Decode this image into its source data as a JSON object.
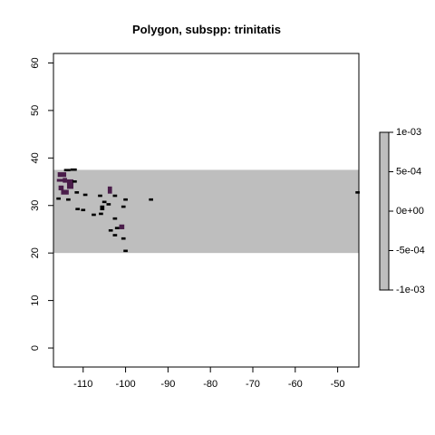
{
  "chart_data": {
    "type": "heatmap",
    "title": "Polygon, subspp: trinitatis",
    "xlabel": "",
    "ylabel": "",
    "xlim": [
      -117,
      -45
    ],
    "ylim": [
      -4,
      62
    ],
    "x_ticks": [
      -110,
      -100,
      -90,
      -80,
      -70,
      -60,
      -50
    ],
    "y_ticks": [
      0,
      10,
      20,
      30,
      40,
      50,
      60
    ],
    "extent_band": {
      "ymin": 20,
      "ymax": 37.5,
      "color": "#bebebe"
    },
    "colors": {
      "band": "#bebebe",
      "cell": "#000000",
      "dense_cell": "#4a1d4a"
    },
    "cells": [
      [
        -116.0,
        36.0,
        2.0,
        1.0,
        1
      ],
      [
        -114.5,
        37.2,
        1.5,
        0.5,
        0
      ],
      [
        -113.0,
        37.3,
        1.5,
        0.5,
        0
      ],
      [
        -116.2,
        35.0,
        1.5,
        0.6,
        1
      ],
      [
        -114.8,
        34.8,
        1.0,
        1.0,
        1
      ],
      [
        -113.8,
        33.5,
        1.5,
        2.0,
        1
      ],
      [
        -115.8,
        33.2,
        1.2,
        1.0,
        1
      ],
      [
        -115.2,
        32.3,
        1.8,
        1.0,
        1
      ],
      [
        -116.3,
        31.2,
        1.0,
        0.5,
        0
      ],
      [
        -114.0,
        31.0,
        1.0,
        0.5,
        0
      ],
      [
        -112.5,
        34.8,
        1.0,
        0.5,
        0
      ],
      [
        -112.0,
        32.5,
        1.0,
        0.5,
        0
      ],
      [
        -111.8,
        29.0,
        1.0,
        0.5,
        0
      ],
      [
        -110.5,
        28.8,
        1.0,
        0.5,
        0
      ],
      [
        -110.0,
        32.0,
        1.0,
        0.5,
        0
      ],
      [
        -108.0,
        27.8,
        1.0,
        0.5,
        0
      ],
      [
        -106.5,
        31.8,
        1.0,
        0.5,
        0
      ],
      [
        -104.2,
        32.5,
        1.0,
        1.5,
        1
      ],
      [
        -103.0,
        31.8,
        1.0,
        0.5,
        0
      ],
      [
        -105.5,
        30.5,
        1.0,
        0.5,
        0
      ],
      [
        -104.5,
        30.0,
        1.0,
        0.5,
        0
      ],
      [
        -106.0,
        29.0,
        1.0,
        1.0,
        0
      ],
      [
        -106.3,
        28.0,
        1.0,
        0.5,
        0
      ],
      [
        -103.0,
        27.0,
        1.0,
        0.5,
        0
      ],
      [
        -104.0,
        24.5,
        1.0,
        0.5,
        0
      ],
      [
        -102.5,
        25.0,
        1.0,
        0.5,
        0
      ],
      [
        -101.5,
        25.0,
        1.2,
        1.0,
        1
      ],
      [
        -103.0,
        23.5,
        1.0,
        0.5,
        0
      ],
      [
        -101.0,
        22.8,
        1.0,
        0.5,
        0
      ],
      [
        -100.5,
        20.2,
        1.0,
        0.5,
        0
      ],
      [
        -101.0,
        29.5,
        1.0,
        0.5,
        0
      ],
      [
        -100.5,
        31.0,
        1.0,
        0.5,
        0
      ],
      [
        -94.5,
        31.0,
        1.0,
        0.5,
        0
      ],
      [
        -45.8,
        32.5,
        1.0,
        0.5,
        0
      ]
    ],
    "legend": {
      "type": "colorbar",
      "placement": "right",
      "range": [
        -0.001,
        0.001
      ],
      "ticks": [
        "1e-03",
        "5e-04",
        "0e+00",
        "-5e-04",
        "-1e-03"
      ],
      "color": "#bebebe"
    }
  }
}
